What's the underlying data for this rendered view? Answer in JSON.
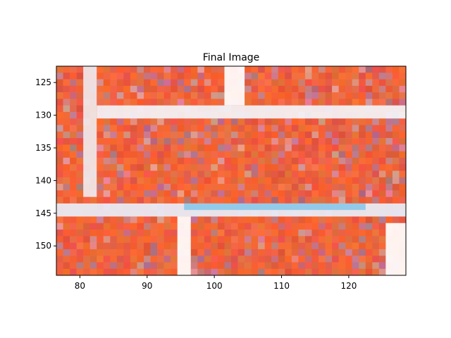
{
  "chart_data": {
    "type": "heatmap",
    "title": "Final Image",
    "xlabel": "",
    "ylabel": "",
    "xlim": [
      76.5,
      128.5
    ],
    "ylim": [
      154.5,
      122.5
    ],
    "x_ticks": [
      {
        "value": 80,
        "label": "80"
      },
      {
        "value": 90,
        "label": "90"
      },
      {
        "value": 100,
        "label": "100"
      },
      {
        "value": 110,
        "label": "110"
      },
      {
        "value": 120,
        "label": "120"
      }
    ],
    "y_ticks": [
      {
        "value": 125,
        "label": "125"
      },
      {
        "value": 130,
        "label": "130"
      },
      {
        "value": 135,
        "label": "135"
      },
      {
        "value": 140,
        "label": "140"
      },
      {
        "value": 145,
        "label": "145"
      },
      {
        "value": 150,
        "label": "150"
      }
    ],
    "grid": false,
    "colors": {
      "base": "#e0603e",
      "base_alt": "#f0603a",
      "light_line": "#f4f2f6",
      "blue_line": "#8cc8e8",
      "pink_edge": "#c070b0"
    },
    "regions": [
      {
        "name": "white-bar-vertical-left",
        "x": [
          80.5,
          82.5
        ],
        "y": [
          122.5,
          142.5
        ],
        "color": "#f0e8ea"
      },
      {
        "name": "white-bar-top",
        "x": [
          101.5,
          104.5
        ],
        "y": [
          122.5,
          128.5
        ],
        "color": "#ffffff"
      },
      {
        "name": "white-bar-horizontal-top",
        "x": [
          82.5,
          128.5
        ],
        "y": [
          128.5,
          130.5
        ],
        "color": "#f4f4f8"
      },
      {
        "name": "white-bar-horizontal-mid",
        "x": [
          76.5,
          128.5
        ],
        "y": [
          143.5,
          145.5
        ],
        "color": "#e8eef8"
      },
      {
        "name": "blue-strip",
        "x": [
          95.5,
          122.5
        ],
        "y": [
          143.5,
          144.5
        ],
        "color": "#8cc8e8"
      },
      {
        "name": "white-bar-vertical-mid",
        "x": [
          94.5,
          96.5
        ],
        "y": [
          145.5,
          154.5
        ],
        "color": "#ffffff"
      },
      {
        "name": "white-bar-vertical-right",
        "x": [
          125.5,
          128.5
        ],
        "y": [
          146.5,
          154.5
        ],
        "color": "#ffffff"
      }
    ]
  }
}
